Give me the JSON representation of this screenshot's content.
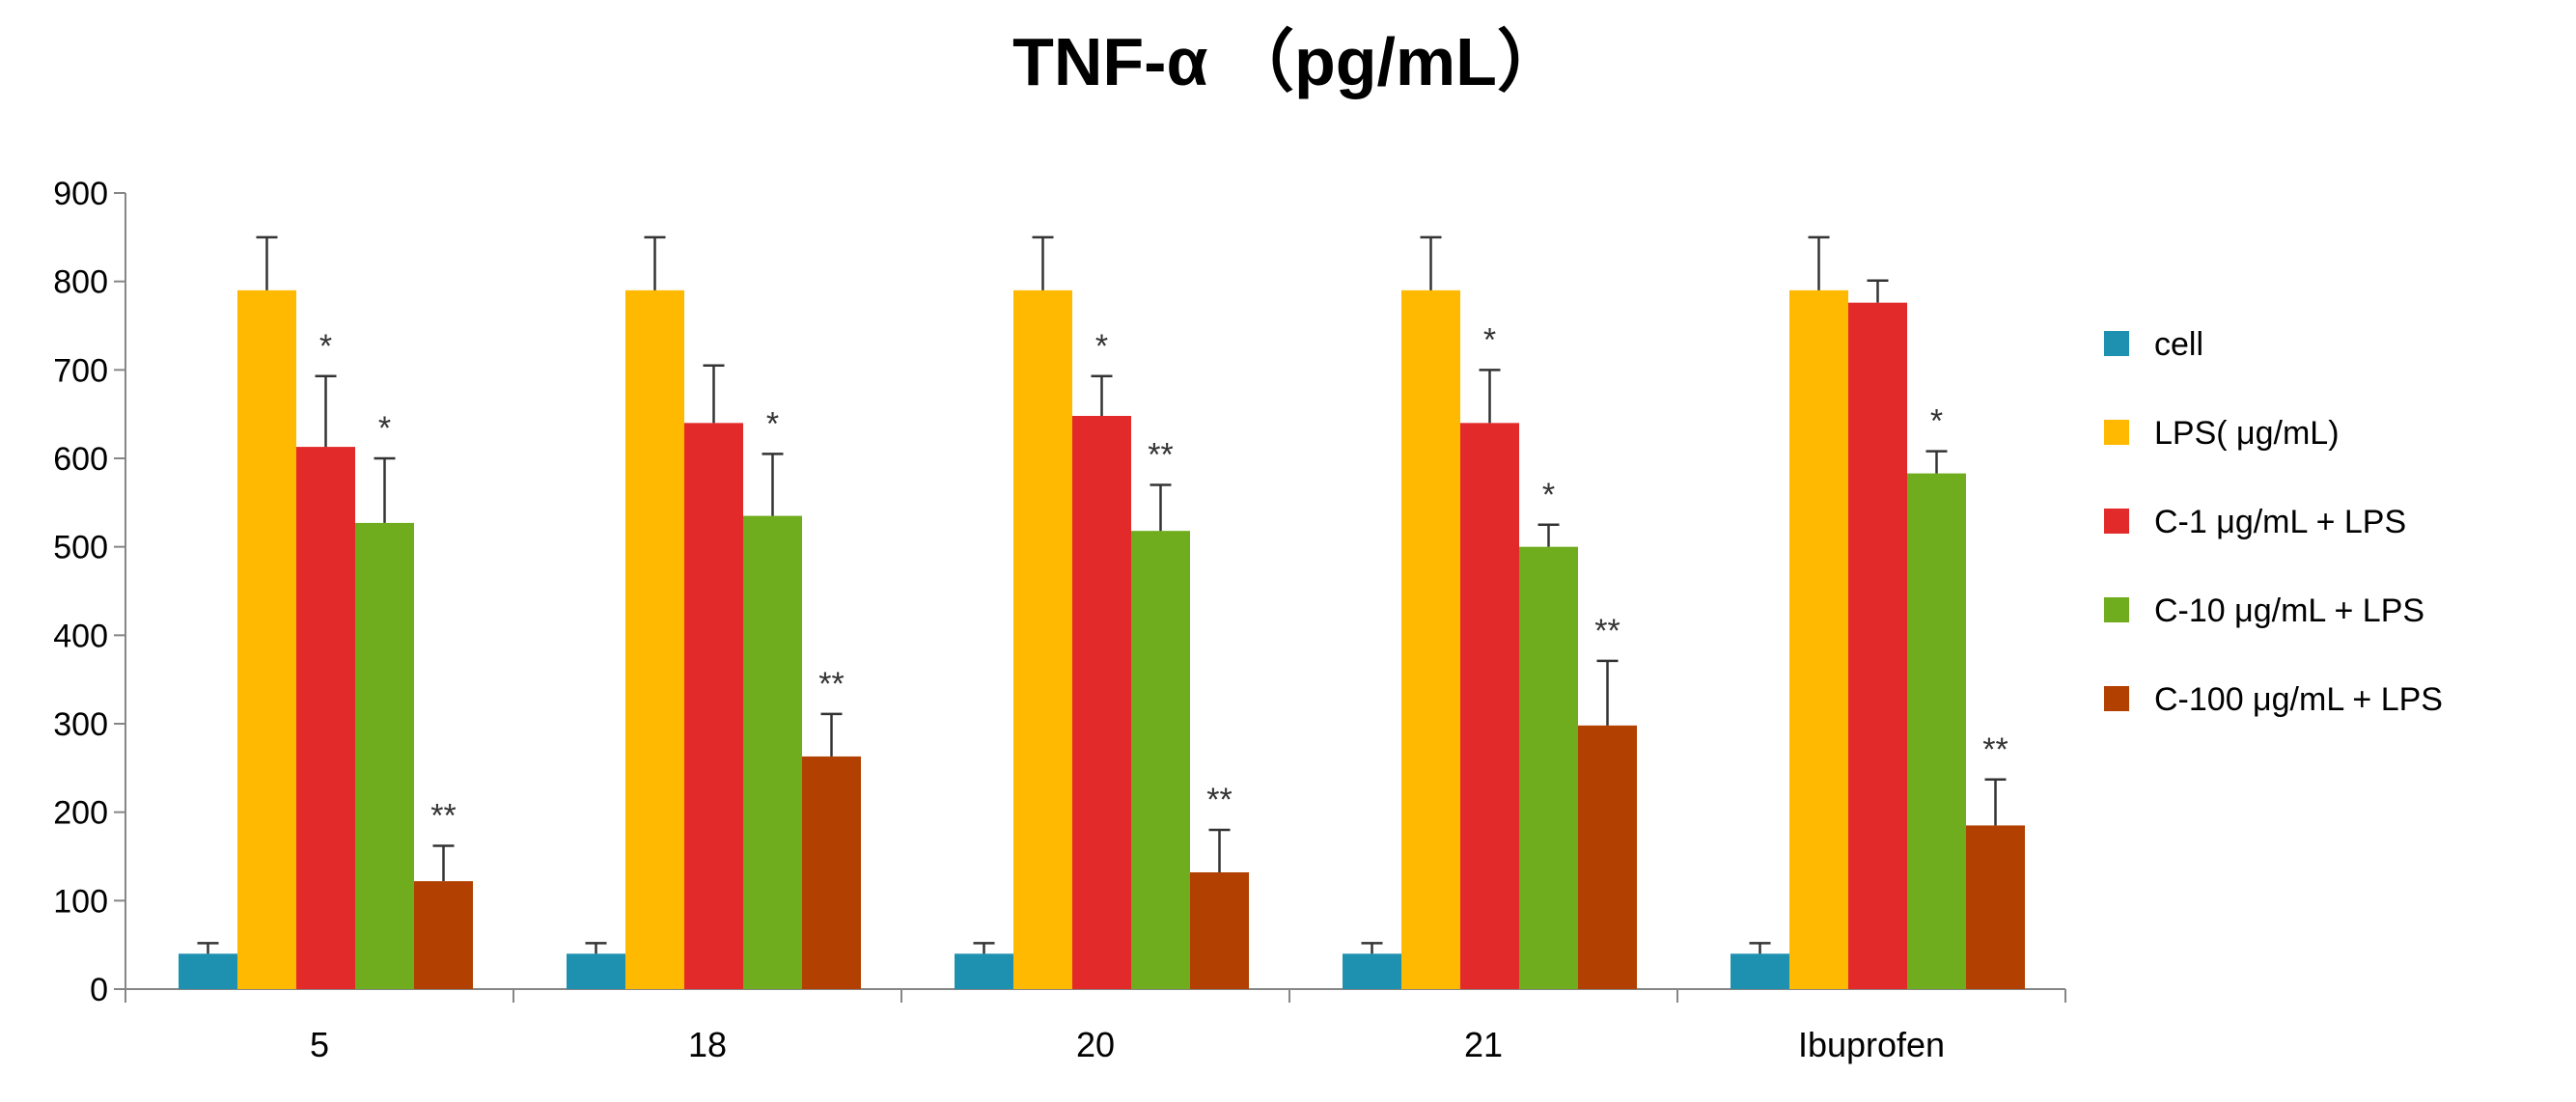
{
  "chart_data": {
    "type": "bar",
    "title": "TNF-α （pg/mL）",
    "xlabel": "",
    "ylabel": "",
    "ylim": [
      0,
      900
    ],
    "yticks": [
      0,
      100,
      200,
      300,
      400,
      500,
      600,
      700,
      800,
      900
    ],
    "categories": [
      "5",
      "18",
      "20",
      "21",
      "Ibuprofen"
    ],
    "legend_position": "right",
    "series": [
      {
        "name": "cell",
        "color": "#1e90b0",
        "values": [
          40,
          40,
          40,
          40,
          40
        ],
        "errors": [
          12,
          12,
          12,
          12,
          12
        ],
        "marks": [
          "",
          "",
          "",
          "",
          ""
        ]
      },
      {
        "name": "LPS( μg/mL)",
        "color": "#ffb900",
        "values": [
          790,
          790,
          790,
          790,
          790
        ],
        "errors": [
          60,
          60,
          60,
          60,
          60
        ],
        "marks": [
          "",
          "",
          "",
          "",
          ""
        ]
      },
      {
        "name": "C-1  μg/mL + LPS",
        "color": "#e32a2a",
        "values": [
          613,
          640,
          648,
          640,
          776
        ],
        "errors": [
          80,
          65,
          45,
          60,
          25
        ],
        "marks": [
          "*",
          "",
          "*",
          "*",
          ""
        ]
      },
      {
        "name": "C-10  μg/mL + LPS",
        "color": "#6fac1e",
        "values": [
          527,
          535,
          518,
          500,
          583
        ],
        "errors": [
          73,
          70,
          52,
          25,
          25
        ],
        "marks": [
          "*",
          "*",
          "**",
          "*",
          "*"
        ]
      },
      {
        "name": "C-100  μg/mL + LPS",
        "color": "#b24000",
        "values": [
          122,
          263,
          132,
          298,
          185
        ],
        "errors": [
          40,
          48,
          48,
          73,
          52
        ],
        "marks": [
          "**",
          "**",
          "**",
          "**",
          "**"
        ]
      }
    ]
  }
}
